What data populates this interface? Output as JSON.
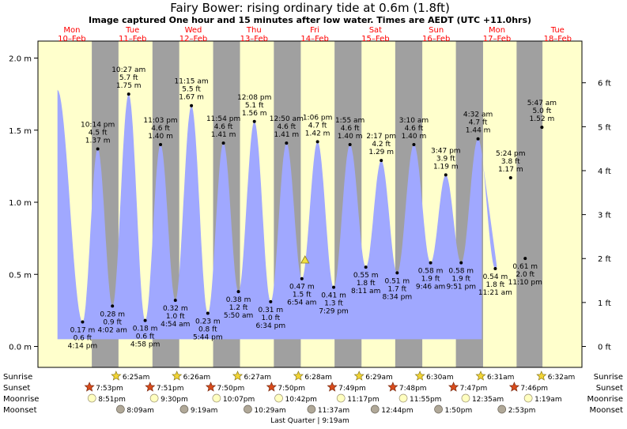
{
  "title": "Fairy Bower: rising  ordinary tide at 0.6m (1.8ft)",
  "subtitle": "Image captured One hour and 15 minutes after low water. Times are AEDT (UTC +11.0hrs)",
  "colors": {
    "day": "#ffffcc",
    "night": "#a0a0a0",
    "tide": "#a0a8ff",
    "day_label": "#ff0000",
    "sun": "#f2d434",
    "sunset": "#d84b1c",
    "moonrise": "#ffffc0",
    "moonset": "#b0a898"
  },
  "days": [
    {
      "dow": "Mon",
      "date": "10–Feb"
    },
    {
      "dow": "Tue",
      "date": "11–Feb"
    },
    {
      "dow": "Wed",
      "date": "12–Feb"
    },
    {
      "dow": "Thu",
      "date": "13–Feb"
    },
    {
      "dow": "Fri",
      "date": "14–Feb"
    },
    {
      "dow": "Sat",
      "date": "15–Feb"
    },
    {
      "dow": "Sun",
      "date": "16–Feb"
    },
    {
      "dow": "Mon",
      "date": "17–Feb"
    },
    {
      "dow": "Tue",
      "date": "18–Feb"
    }
  ],
  "y_ticks_m": [
    "0.0 m",
    "0.5 m",
    "1.0 m",
    "1.5 m",
    "2.0 m"
  ],
  "y_ticks_ft": [
    "0 ft",
    "1 ft",
    "2 ft",
    "3 ft",
    "4 ft",
    "5 ft",
    "6 ft"
  ],
  "chart_data": {
    "type": "area",
    "xlabel": "",
    "ylabel": "",
    "ylim_m": [
      -0.05,
      2.07
    ],
    "y_right_unit": "ft",
    "x_unit": "hours from 00:00 Mon 10-Feb (AEDT)",
    "xlim_hours": [
      0,
      198
    ],
    "grid": false,
    "series_start": {
      "hour": 6.3,
      "height_m": 1.78
    },
    "series_end": {
      "hour": 174,
      "height_m": 1.33
    },
    "tides": [
      {
        "kind": "low",
        "hour": 16.23,
        "time": "4:14 pm",
        "m": 0.17,
        "ft": "0.6 ft",
        "m_label": "0.17 m"
      },
      {
        "kind": "high",
        "hour": 22.23,
        "time": "10:14 pm",
        "m": 1.37,
        "ft": "4.5 ft",
        "m_label": "1.37 m"
      },
      {
        "kind": "low",
        "hour": 28.03,
        "time": "4:02 am",
        "m": 0.28,
        "ft": "0.9 ft",
        "m_label": "0.28 m"
      },
      {
        "kind": "high",
        "hour": 34.45,
        "time": "10:27 am",
        "m": 1.75,
        "ft": "5.7 ft",
        "m_label": "1.75 m"
      },
      {
        "kind": "low",
        "hour": 40.97,
        "time": "4:58 pm",
        "m": 0.18,
        "ft": "0.6 ft",
        "m_label": "0.18 m"
      },
      {
        "kind": "high",
        "hour": 47.05,
        "time": "11:03 pm",
        "m": 1.4,
        "ft": "4.6 ft",
        "m_label": "1.40 m"
      },
      {
        "kind": "low",
        "hour": 52.9,
        "time": "4:54 am",
        "m": 0.32,
        "ft": "1.0 ft",
        "m_label": "0.32 m"
      },
      {
        "kind": "high",
        "hour": 59.25,
        "time": "11:15 am",
        "m": 1.67,
        "ft": "5.5 ft",
        "m_label": "1.67 m"
      },
      {
        "kind": "low",
        "hour": 65.73,
        "time": "5:44 pm",
        "m": 0.23,
        "ft": "0.8 ft",
        "m_label": "0.23 m"
      },
      {
        "kind": "high",
        "hour": 71.9,
        "time": "11:54 pm",
        "m": 1.41,
        "ft": "4.6 ft",
        "m_label": "1.41 m"
      },
      {
        "kind": "low",
        "hour": 77.83,
        "time": "5:50 am",
        "m": 0.38,
        "ft": "1.2 ft",
        "m_label": "0.38 m"
      },
      {
        "kind": "high",
        "hour": 84.13,
        "time": "12:08 pm",
        "m": 1.56,
        "ft": "5.1 ft",
        "m_label": "1.56 m"
      },
      {
        "kind": "low",
        "hour": 90.57,
        "time": "6:34 pm",
        "m": 0.31,
        "ft": "1.0 ft",
        "m_label": "0.31 m"
      },
      {
        "kind": "high",
        "hour": 96.83,
        "time": "12:50 am",
        "m": 1.41,
        "ft": "4.6 ft",
        "m_label": "1.41 m"
      },
      {
        "kind": "low",
        "hour": 102.9,
        "time": "6:54 am",
        "m": 0.47,
        "ft": "1.5 ft",
        "m_label": "0.47 m"
      },
      {
        "kind": "high",
        "hour": 109.1,
        "time": "1:06 pm",
        "m": 1.42,
        "ft": "4.7 ft",
        "m_label": "1.42 m"
      },
      {
        "kind": "low",
        "hour": 115.48,
        "time": "7:29 pm",
        "m": 0.41,
        "ft": "1.3 ft",
        "m_label": "0.41 m"
      },
      {
        "kind": "high",
        "hour": 121.92,
        "time": "1:55 am",
        "m": 1.4,
        "ft": "4.6 ft",
        "m_label": "1.40 m"
      },
      {
        "kind": "low",
        "hour": 128.18,
        "time": "8:11 am",
        "m": 0.55,
        "ft": "1.8 ft",
        "m_label": "0.55 m"
      },
      {
        "kind": "high",
        "hour": 134.28,
        "time": "2:17 pm",
        "m": 1.29,
        "ft": "4.2 ft",
        "m_label": "1.29 m"
      },
      {
        "kind": "low",
        "hour": 140.57,
        "time": "8:34 pm",
        "m": 0.51,
        "ft": "1.7 ft",
        "m_label": "0.51 m"
      },
      {
        "kind": "high",
        "hour": 147.17,
        "time": "3:10 am",
        "m": 1.4,
        "ft": "4.6 ft",
        "m_label": "1.40 m"
      },
      {
        "kind": "low",
        "hour": 153.77,
        "time": "9:46 am",
        "m": 0.58,
        "ft": "1.9 ft",
        "m_label": "0.58 m"
      },
      {
        "kind": "high",
        "hour": 159.78,
        "time": "3:47 pm",
        "m": 1.19,
        "ft": "3.9 ft",
        "m_label": "1.19 m"
      },
      {
        "kind": "low",
        "hour": 165.85,
        "time": "9:51 pm",
        "m": 0.58,
        "ft": "1.9 ft",
        "m_label": "0.58 m"
      },
      {
        "kind": "high",
        "hour": 172.53,
        "time": "4:32 am",
        "m": 1.44,
        "ft": "4.7 ft",
        "m_label": "1.44 m"
      },
      {
        "kind": "low",
        "hour": 179.35,
        "time": "11:21 am",
        "m": 0.54,
        "ft": "1.8 ft",
        "m_label": "0.54 m"
      },
      {
        "kind": "high",
        "hour": 185.4,
        "time": "5:24 pm",
        "m": 1.17,
        "ft": "3.8 ft",
        "m_label": "1.17 m"
      },
      {
        "kind": "low",
        "hour": 191.17,
        "time": "11:10 pm",
        "m": 0.61,
        "ft": "2.0 ft",
        "m_label": "0.61 m"
      },
      {
        "kind": "high",
        "hour": 197.78,
        "time": "5:47 am",
        "m": 1.52,
        "ft": "5.0 ft",
        "m_label": "1.52 m"
      }
    ],
    "current_marker": {
      "hour": 104.15,
      "height_m": 0.6
    }
  },
  "night_periods_hours": [
    [
      19.88,
      30.42
    ],
    [
      43.85,
      54.43
    ],
    [
      67.83,
      78.45
    ],
    [
      91.83,
      102.47
    ],
    [
      115.82,
      126.48
    ],
    [
      139.8,
      150.5
    ],
    [
      163.78,
      174.52
    ],
    [
      187.77,
      198
    ]
  ],
  "events": {
    "sunrise": [
      {
        "hour": 30.42,
        "label": "6:25am"
      },
      {
        "hour": 54.43,
        "label": "6:26am"
      },
      {
        "hour": 78.45,
        "label": "6:27am"
      },
      {
        "hour": 102.47,
        "label": "6:28am"
      },
      {
        "hour": 126.48,
        "label": "6:29am"
      },
      {
        "hour": 150.5,
        "label": "6:30am"
      },
      {
        "hour": 174.52,
        "label": "6:31am"
      },
      {
        "hour": 198.53,
        "label": "6:32am"
      }
    ],
    "sunset": [
      {
        "hour": 19.88,
        "label": "7:53pm"
      },
      {
        "hour": 43.85,
        "label": "7:51pm"
      },
      {
        "hour": 67.83,
        "label": "7:50pm"
      },
      {
        "hour": 91.83,
        "label": "7:50pm"
      },
      {
        "hour": 115.82,
        "label": "7:49pm"
      },
      {
        "hour": 139.8,
        "label": "7:48pm"
      },
      {
        "hour": 163.78,
        "label": "7:47pm"
      },
      {
        "hour": 187.77,
        "label": "7:46pm"
      }
    ],
    "moonrise": [
      {
        "hour": 20.85,
        "label": "8:51pm"
      },
      {
        "hour": 45.5,
        "label": "9:30pm"
      },
      {
        "hour": 70.12,
        "label": "10:07pm"
      },
      {
        "hour": 94.7,
        "label": "10:42pm"
      },
      {
        "hour": 119.28,
        "label": "11:17pm"
      },
      {
        "hour": 143.92,
        "label": "11:55pm"
      },
      {
        "hour": 168.58,
        "label": "12:35am"
      },
      {
        "hour": 193.32,
        "label": "1:19am"
      }
    ],
    "moonset": [
      {
        "hour": 32.15,
        "label": "8:09am"
      },
      {
        "hour": 57.32,
        "label": "9:19am"
      },
      {
        "hour": 82.48,
        "label": "10:29am"
      },
      {
        "hour": 107.62,
        "label": "11:37am"
      },
      {
        "hour": 132.73,
        "label": "12:44pm"
      },
      {
        "hour": 157.83,
        "label": "1:50pm"
      },
      {
        "hour": 182.88,
        "label": "2:53pm"
      }
    ]
  },
  "event_row_labels": {
    "sunrise": "Sunrise",
    "sunset": "Sunset",
    "moonrise": "Moonrise",
    "moonset": "Moonset"
  },
  "moon_phase_note": "Last Quarter | 9:19am"
}
